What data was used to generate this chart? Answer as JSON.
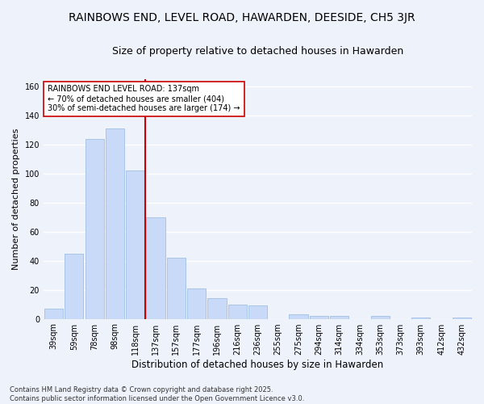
{
  "title": "RAINBOWS END, LEVEL ROAD, HAWARDEN, DEESIDE, CH5 3JR",
  "subtitle": "Size of property relative to detached houses in Hawarden",
  "xlabel": "Distribution of detached houses by size in Hawarden",
  "ylabel": "Number of detached properties",
  "categories": [
    "39sqm",
    "59sqm",
    "78sqm",
    "98sqm",
    "118sqm",
    "137sqm",
    "157sqm",
    "177sqm",
    "196sqm",
    "216sqm",
    "236sqm",
    "255sqm",
    "275sqm",
    "294sqm",
    "314sqm",
    "334sqm",
    "353sqm",
    "373sqm",
    "393sqm",
    "412sqm",
    "432sqm"
  ],
  "values": [
    7,
    45,
    124,
    131,
    102,
    70,
    42,
    21,
    14,
    10,
    9,
    0,
    3,
    2,
    2,
    0,
    2,
    0,
    1,
    0,
    1
  ],
  "bar_color": "#c9daf8",
  "bar_edge_color": "#a8c4e8",
  "vline_color": "#cc0000",
  "vline_pos": 5,
  "annotation_text": "RAINBOWS END LEVEL ROAD: 137sqm\n← 70% of detached houses are smaller (404)\n30% of semi-detached houses are larger (174) →",
  "annotation_box_color": "#ffffff",
  "annotation_box_edge": "#cc0000",
  "footer": "Contains HM Land Registry data © Crown copyright and database right 2025.\nContains public sector information licensed under the Open Government Licence v3.0.",
  "ylim": [
    0,
    165
  ],
  "background_color": "#eef2fb",
  "grid_color": "#ffffff",
  "title_fontsize": 10,
  "subtitle_fontsize": 9,
  "ylabel_fontsize": 8,
  "xlabel_fontsize": 8.5,
  "tick_fontsize": 7,
  "annot_fontsize": 7,
  "footer_fontsize": 6
}
